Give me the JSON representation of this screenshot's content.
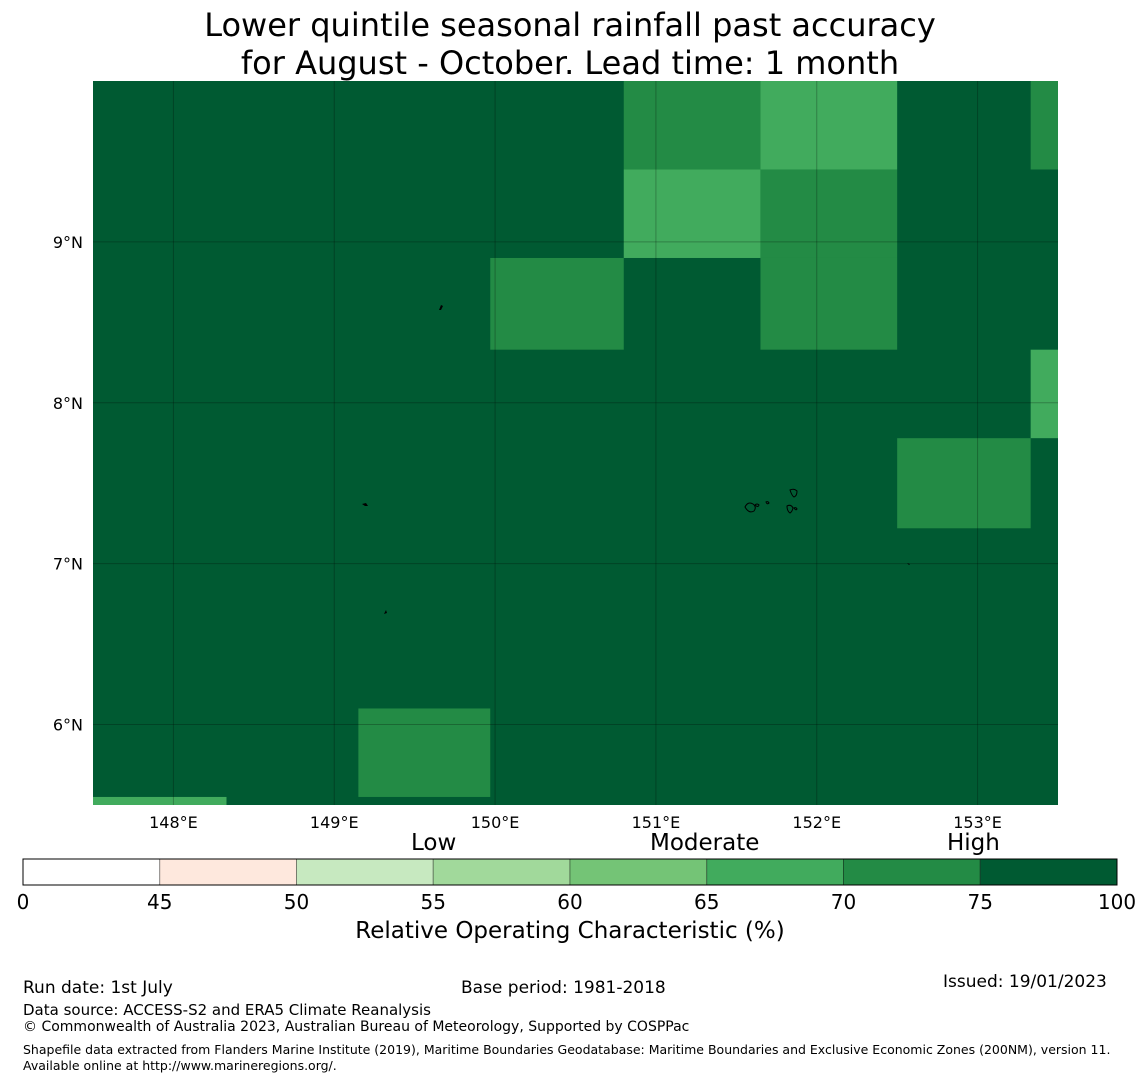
{
  "title": {
    "line1": "Lower quintile seasonal rainfall past accuracy",
    "line2": "for August - October. Lead time: 1 month"
  },
  "map": {
    "lat_labels": [
      "9°N",
      "8°N",
      "7°N",
      "6°N"
    ],
    "lon_labels": [
      "148°E",
      "149°E",
      "150°E",
      "151°E",
      "152°E",
      "153°E"
    ],
    "background_color": "#005a32",
    "palette": {
      "70-75": "#238b45",
      "65-70": "#41ab5d",
      "60-65": "#74c476"
    },
    "cells": [
      {
        "lon_from": 150.8,
        "lon_to": 151.65,
        "lat_from": 9.45,
        "lat_to": 10.0,
        "class": "70-75"
      },
      {
        "lon_from": 151.65,
        "lon_to": 152.5,
        "lat_from": 9.45,
        "lat_to": 10.0,
        "class": "65-70"
      },
      {
        "lon_from": 153.33,
        "lon_to": 153.5,
        "lat_from": 9.45,
        "lat_to": 10.0,
        "class": "70-75"
      },
      {
        "lon_from": 150.8,
        "lon_to": 151.65,
        "lat_from": 8.9,
        "lat_to": 9.45,
        "class": "65-70"
      },
      {
        "lon_from": 151.65,
        "lon_to": 152.5,
        "lat_from": 8.9,
        "lat_to": 9.45,
        "class": "70-75"
      },
      {
        "lon_from": 149.97,
        "lon_to": 150.8,
        "lat_from": 8.33,
        "lat_to": 8.9,
        "class": "70-75"
      },
      {
        "lon_from": 151.65,
        "lon_to": 152.5,
        "lat_from": 8.33,
        "lat_to": 8.9,
        "class": "70-75"
      },
      {
        "lon_from": 153.33,
        "lon_to": 153.5,
        "lat_from": 7.78,
        "lat_to": 8.33,
        "class": "65-70"
      },
      {
        "lon_from": 152.5,
        "lon_to": 153.33,
        "lat_from": 7.22,
        "lat_to": 7.78,
        "class": "70-75"
      },
      {
        "lon_from": 149.15,
        "lon_to": 149.97,
        "lat_from": 5.55,
        "lat_to": 6.1,
        "class": "70-75"
      },
      {
        "lon_from": 147.5,
        "lon_to": 148.33,
        "lat_from": 5.5,
        "lat_to": 5.55,
        "class": "65-70"
      }
    ]
  },
  "colorbar": {
    "category_labels": {
      "low": "Low",
      "moderate": "Moderate",
      "high": "High"
    },
    "ticks": [
      "0",
      "45",
      "50",
      "55",
      "60",
      "65",
      "70",
      "75",
      "100"
    ],
    "colors": [
      "#ffffff",
      "#fee8dd",
      "#c7e9c0",
      "#a1d99b",
      "#74c476",
      "#41ab5d",
      "#238b45",
      "#005a32"
    ],
    "title": "Relative Operating Characteristic (%)"
  },
  "footer": {
    "run_date": "Run date: 1st July",
    "base_period": "Base period: 1981-2018",
    "issued": "Issued: 19/01/2023",
    "data_source": "Data source: ACCESS-S2 and ERA5 Climate Reanalysis",
    "copyright": "© Commonwealth of Australia 2023, Australian Bureau of Meteorology, Supported by COSPPac",
    "shapefile_note": "Shapefile data extracted from Flanders Marine Institute (2019), Maritime Boundaries Geodatabase: Maritime Boundaries and Exclusive Economic Zones (200NM), version 11. Available online at http://www.marineregions.org/."
  }
}
